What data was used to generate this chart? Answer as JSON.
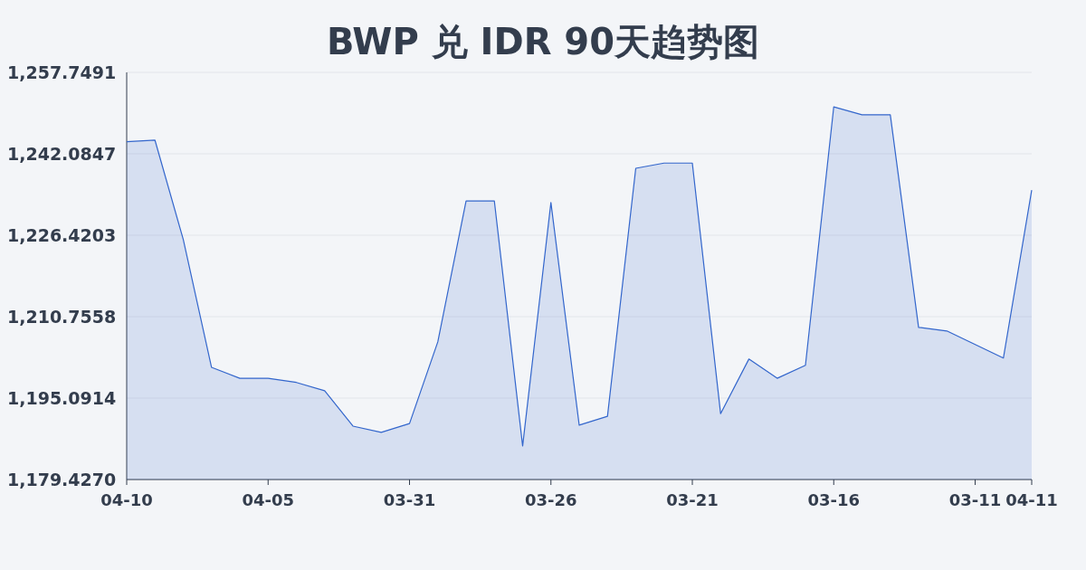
{
  "chart_data": {
    "type": "area",
    "title": "BWP 兑 IDR 90天趋势图",
    "color": "#3366cc",
    "grid": "y",
    "categories": [
      "04-10",
      null,
      null,
      null,
      null,
      "04-05",
      null,
      null,
      null,
      null,
      "03-31",
      null,
      null,
      null,
      null,
      "03-26",
      null,
      null,
      null,
      null,
      "03-21",
      null,
      null,
      null,
      null,
      "03-16",
      null,
      null,
      null,
      null,
      "03-11",
      null,
      "04-11"
    ],
    "values": [
      1244.4,
      1244.7,
      1225.6,
      1201.0,
      1198.9,
      1198.9,
      1198.1,
      1196.5,
      1189.7,
      1188.5,
      1190.2,
      1205.9,
      1233.0,
      1233.0,
      1185.9,
      1232.7,
      1189.9,
      1191.6,
      1239.3,
      1240.3,
      1240.3,
      1192.1,
      1202.6,
      1198.9,
      1201.4,
      1251.1,
      1249.6,
      1249.6,
      1208.7,
      1208.0,
      1205.4,
      1202.8,
      1235.1
    ],
    "ylim": [
      1179.427,
      1257.7491
    ],
    "yticks": [
      {
        "value": 1179.427,
        "label": "1,179.4270"
      },
      {
        "value": 1195.0914,
        "label": "1,195.0914"
      },
      {
        "value": 1210.7558,
        "label": "1,210.7558"
      },
      {
        "value": 1226.4203,
        "label": "1,226.4203"
      },
      {
        "value": 1242.0847,
        "label": "1,242.0847"
      },
      {
        "value": 1257.7491,
        "label": "1,257.7491"
      }
    ]
  }
}
